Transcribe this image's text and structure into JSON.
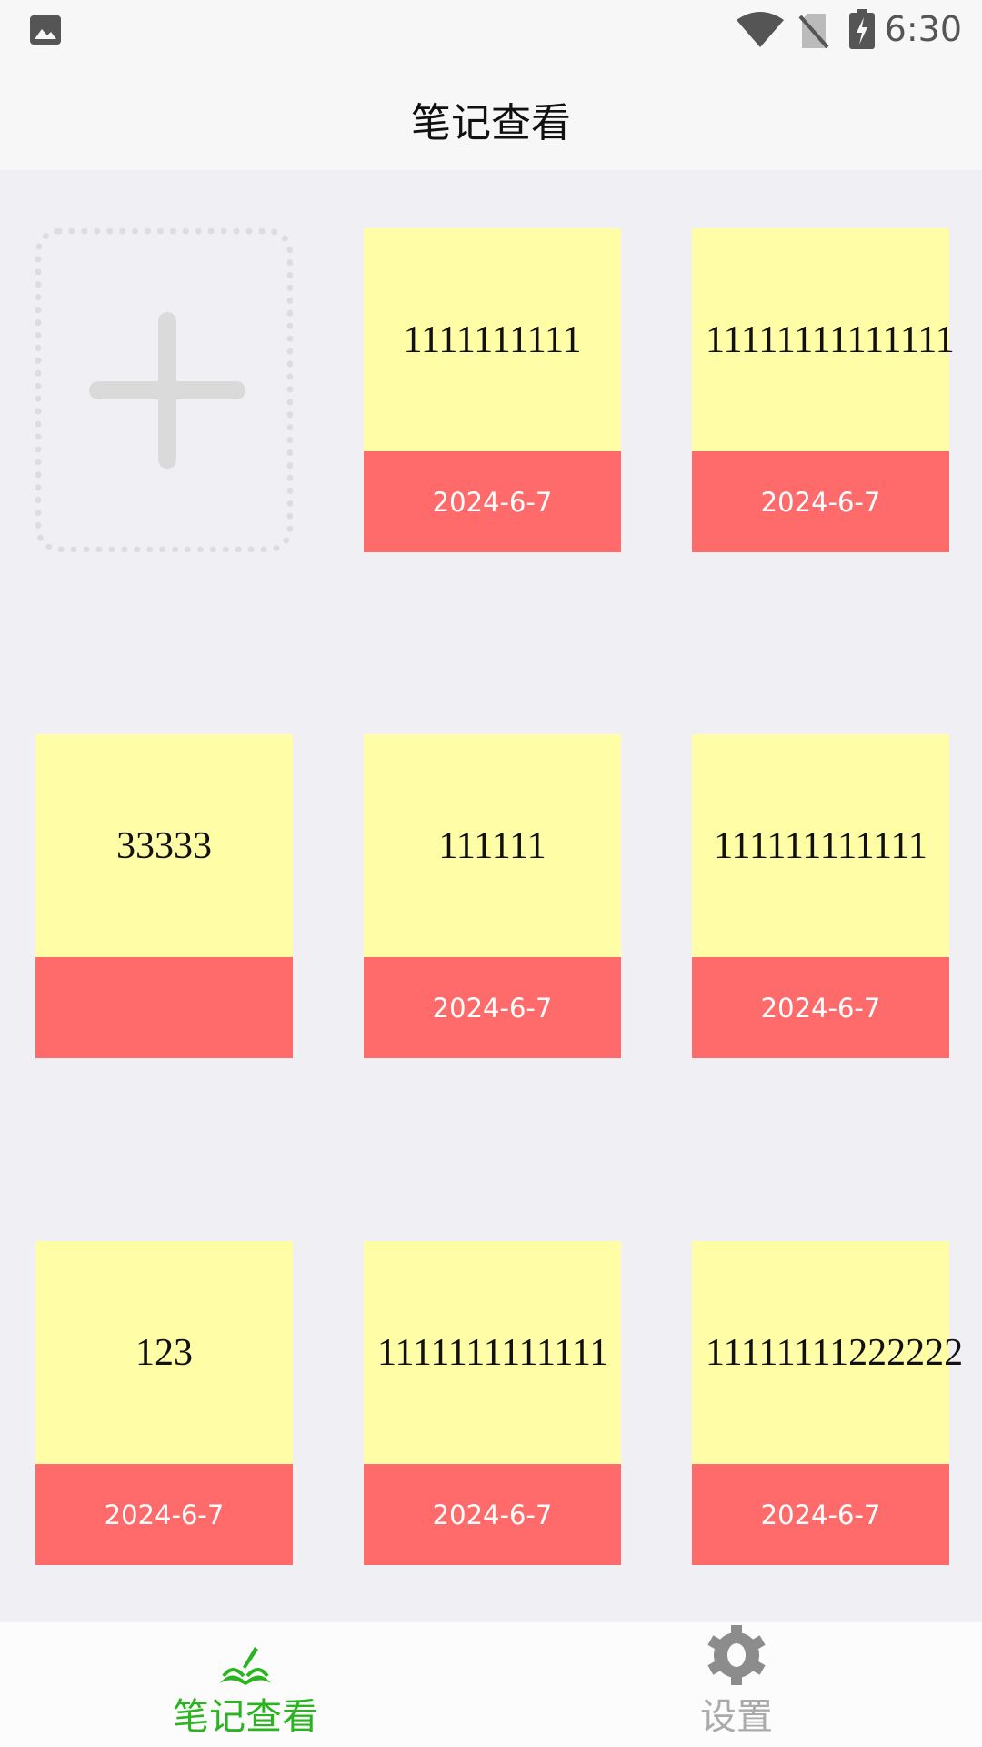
{
  "status_bar": {
    "time": "6:30",
    "icons": [
      "image-icon",
      "wifi-icon",
      "no-sim-icon",
      "battery-charging-icon"
    ]
  },
  "header": {
    "title": "笔记查看"
  },
  "add_button": {
    "icon": "plus-icon"
  },
  "notes": [
    {
      "text": "1111111111",
      "date": "2024-6-7"
    },
    {
      "text": "11111111111111",
      "date": "2024-6-7"
    },
    {
      "text": "33333",
      "date": ""
    },
    {
      "text": "111111",
      "date": "2024-6-7"
    },
    {
      "text": "111111111111",
      "date": "2024-6-7"
    },
    {
      "text": "123",
      "date": "2024-6-7"
    },
    {
      "text": "1111111111111",
      "date": "2024-6-7"
    },
    {
      "text": "11111111222222",
      "date": "2024-6-7"
    }
  ],
  "colors": {
    "note_body": "#fffea6",
    "note_footer": "#ff6b6b",
    "active_tab": "#2ab520",
    "inactive_tab": "#999999"
  },
  "bottom_nav": [
    {
      "label": "笔记查看",
      "icon": "notebook-pen-icon",
      "active": true
    },
    {
      "label": "设置",
      "icon": "gear-icon",
      "active": false
    }
  ]
}
